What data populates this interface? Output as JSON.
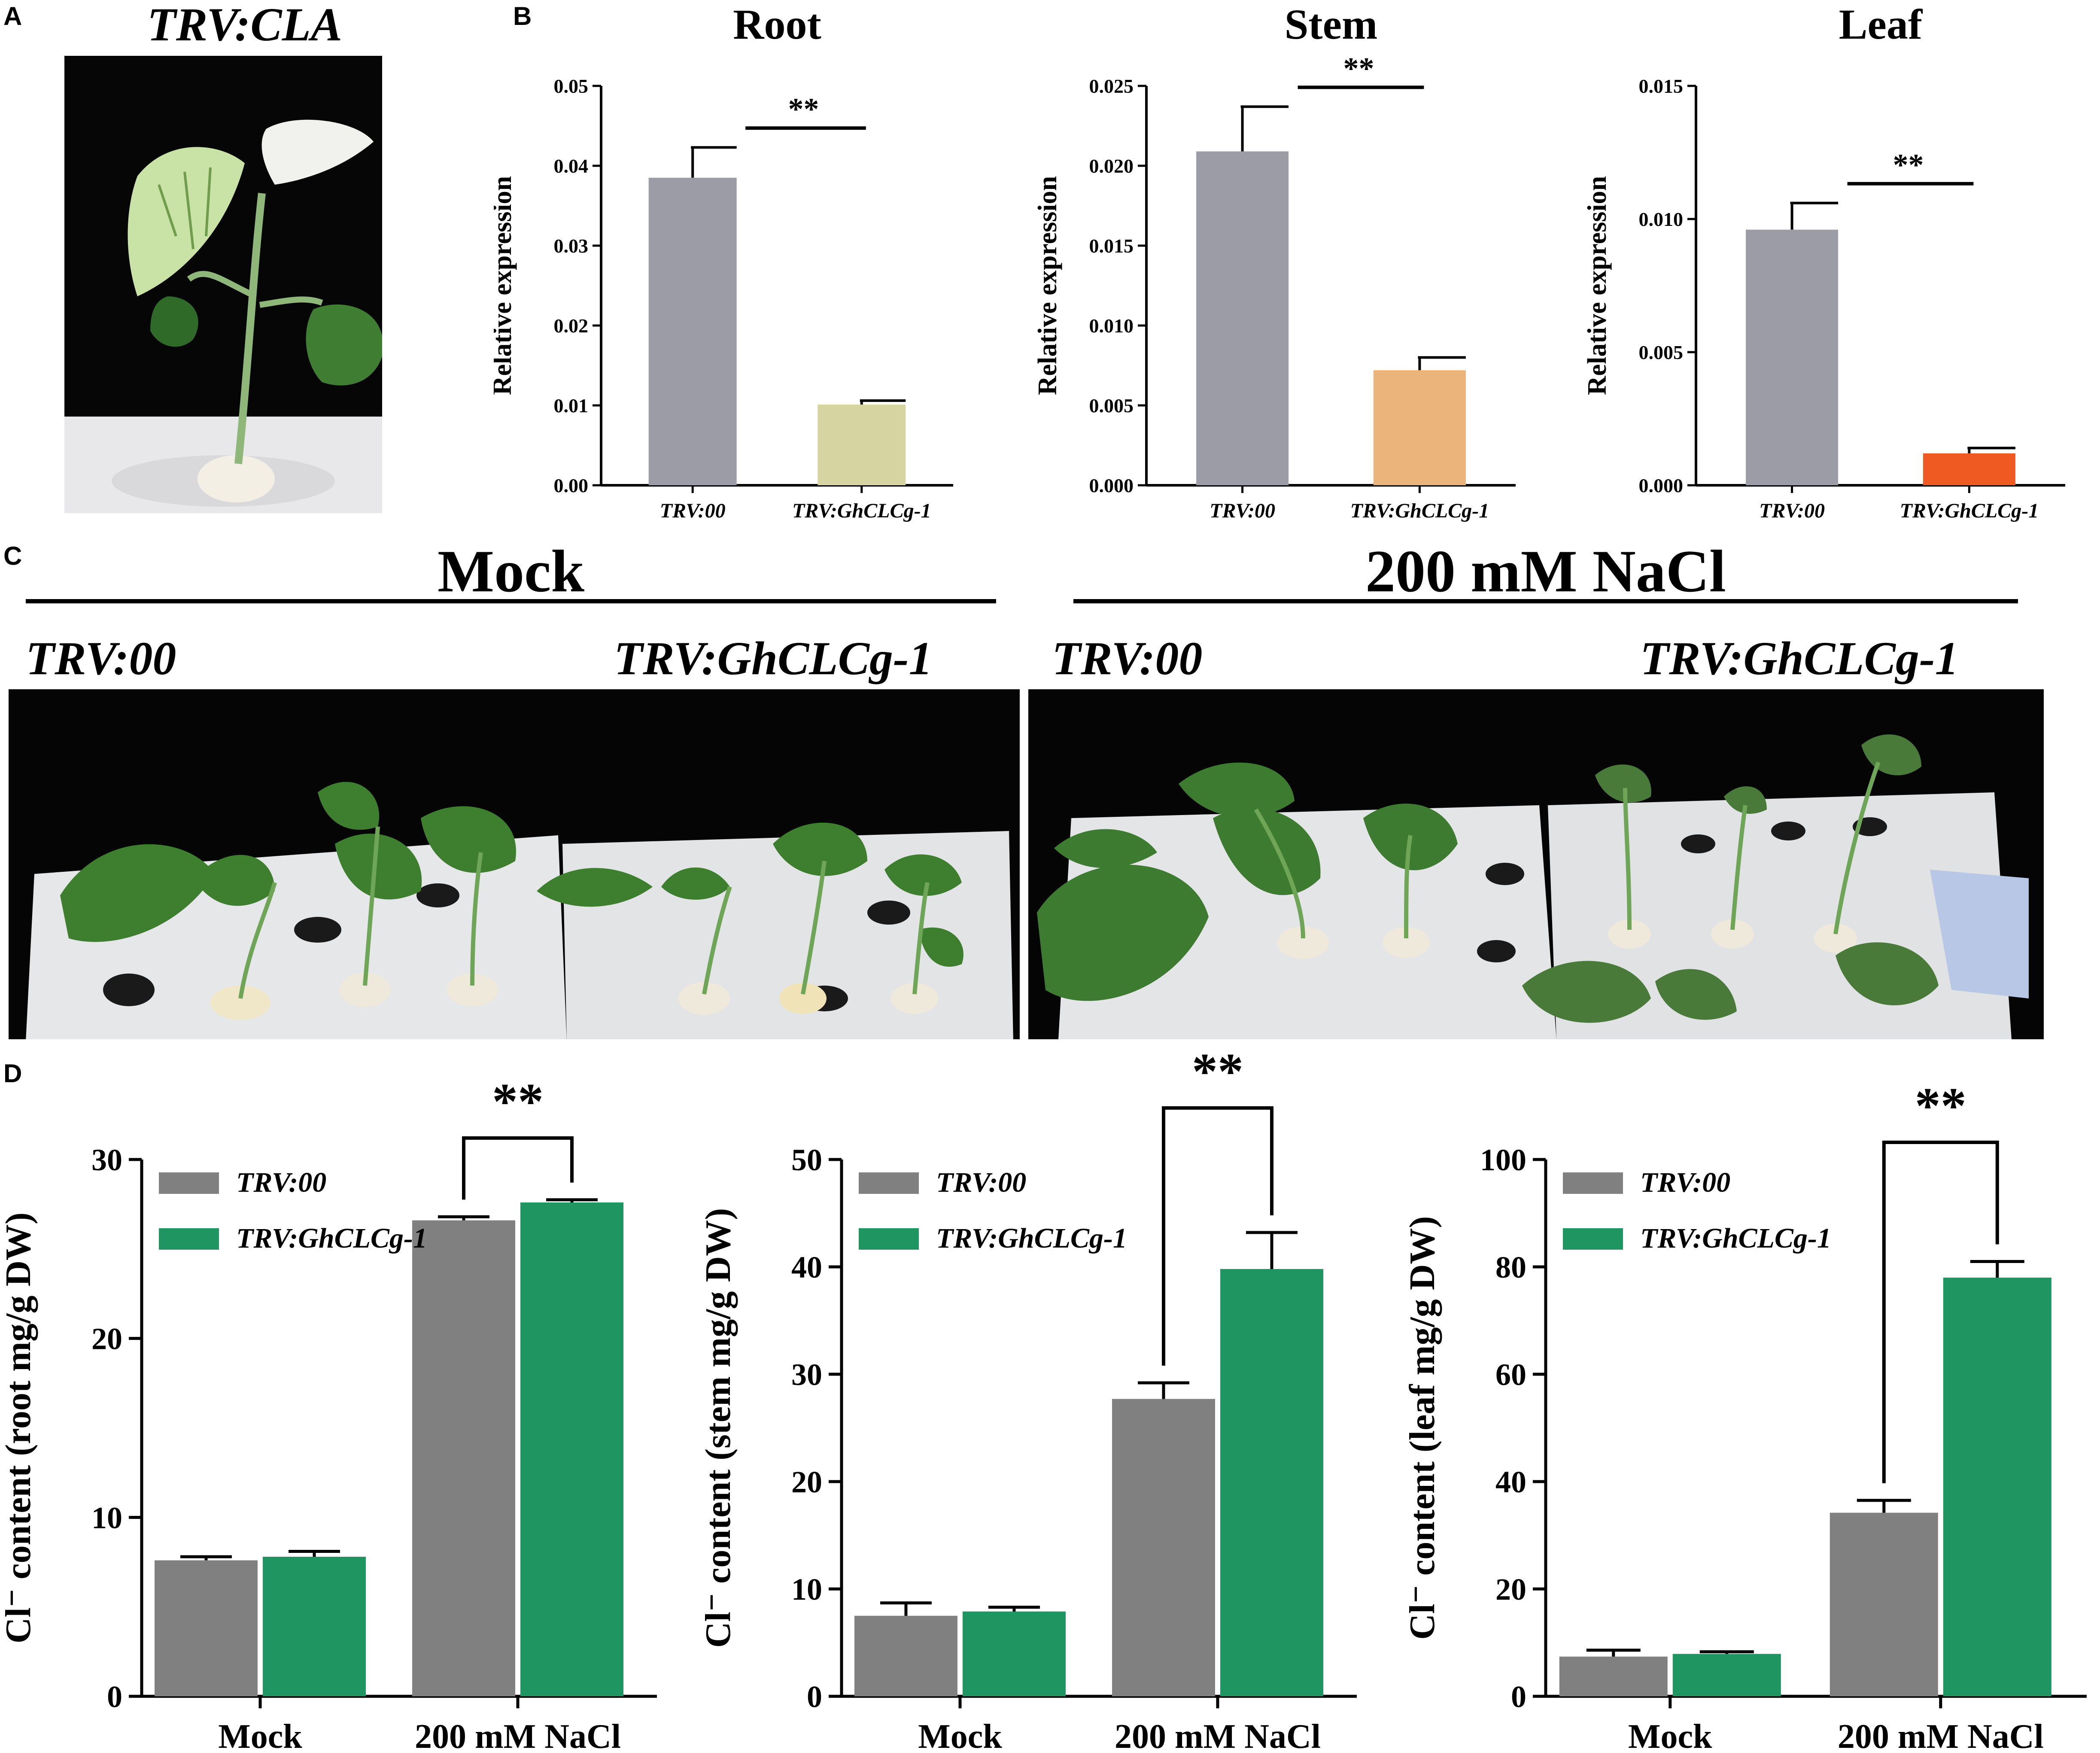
{
  "panels": {
    "a": {
      "letter": "A",
      "title": "TRV:CLA"
    },
    "b": {
      "letter": "B"
    },
    "c": {
      "letter": "C",
      "group_mock": "Mock",
      "group_nacl": "200 mM NaCl",
      "label_trv00_left": "TRV:00",
      "label_ghclcg_left": "TRV:GhCLCg-1",
      "label_trv00_right": "TRV:00",
      "label_ghclcg_right": "TRV:GhCLCg-1"
    },
    "d": {
      "letter": "D"
    }
  },
  "chart_data": [
    {
      "id": "b-root",
      "type": "bar",
      "title": "Root",
      "ylabel": "Relative expression",
      "categories": [
        "TRV:00",
        "TRV:GhCLCg-1"
      ],
      "values": [
        0.0385,
        0.0101
      ],
      "errors": [
        0.0038,
        0.0005
      ],
      "colors": [
        "#9c9ca6",
        "#d6d4a0"
      ],
      "ylim": [
        0,
        0.05
      ],
      "ticks": [
        "0.00",
        "0.01",
        "0.02",
        "0.03",
        "0.04",
        "0.05"
      ],
      "significance": "**"
    },
    {
      "id": "b-stem",
      "type": "bar",
      "title": "Stem",
      "ylabel": "Relative expression",
      "categories": [
        "TRV:00",
        "TRV:GhCLCg-1"
      ],
      "values": [
        0.0209,
        0.0072
      ],
      "errors": [
        0.0028,
        0.0008
      ],
      "colors": [
        "#9c9ca6",
        "#ebb47b"
      ],
      "ylim": [
        0,
        0.025
      ],
      "ticks": [
        "0.000",
        "0.005",
        "0.010",
        "0.015",
        "0.020",
        "0.025"
      ],
      "significance": "**"
    },
    {
      "id": "b-leaf",
      "type": "bar",
      "title": "Leaf",
      "ylabel": "Relative expression",
      "categories": [
        "TRV:00",
        "TRV:GhCLCg-1"
      ],
      "values": [
        0.0096,
        0.0012
      ],
      "errors": [
        0.001,
        0.0002
      ],
      "colors": [
        "#9c9ca6",
        "#ef5a22"
      ],
      "ylim": [
        0,
        0.015
      ],
      "ticks": [
        "0.000",
        "0.005",
        "0.010",
        "0.015"
      ],
      "significance": "**"
    },
    {
      "id": "d-root",
      "type": "bar",
      "ylabel": "Cl⁻ content (root mg/g DW)",
      "categories": [
        "Mock",
        "200 mM NaCl"
      ],
      "series": [
        {
          "name": "TRV:00",
          "color": "#808080",
          "values": [
            7.6,
            26.6
          ],
          "errors": [
            0.2,
            0.2
          ]
        },
        {
          "name": "TRV:GhCLCg-1",
          "color": "#1f9562",
          "values": [
            7.8,
            27.6
          ],
          "errors": [
            0.3,
            0.15
          ]
        }
      ],
      "ylim": [
        0,
        30
      ],
      "ticks": [
        "0",
        "10",
        "20",
        "30"
      ],
      "significance": "**"
    },
    {
      "id": "d-stem",
      "type": "bar",
      "ylabel": "Cl⁻ content (stem mg/g DW)",
      "categories": [
        "Mock",
        "200 mM NaCl"
      ],
      "series": [
        {
          "name": "TRV:00",
          "color": "#808080",
          "values": [
            7.5,
            27.7
          ],
          "errors": [
            1.2,
            1.5
          ]
        },
        {
          "name": "TRV:GhCLCg-1",
          "color": "#1f9562",
          "values": [
            7.9,
            39.8
          ],
          "errors": [
            0.4,
            3.4
          ]
        }
      ],
      "ylim": [
        0,
        50
      ],
      "ticks": [
        "0",
        "10",
        "20",
        "30",
        "40",
        "50"
      ],
      "significance": "**"
    },
    {
      "id": "d-leaf",
      "type": "bar",
      "ylabel": "Cl⁻ content (leaf mg/g DW)",
      "categories": [
        "Mock",
        "200 mM NaCl"
      ],
      "series": [
        {
          "name": "TRV:00",
          "color": "#808080",
          "values": [
            7.4,
            34.2
          ],
          "errors": [
            1.2,
            2.3
          ]
        },
        {
          "name": "TRV:GhCLCg-1",
          "color": "#1f9562",
          "values": [
            7.9,
            78.0
          ],
          "errors": [
            0.4,
            3.0
          ]
        }
      ],
      "ylim": [
        0,
        100
      ],
      "ticks": [
        "0",
        "20",
        "40",
        "60",
        "80",
        "100"
      ],
      "significance": "**"
    }
  ]
}
